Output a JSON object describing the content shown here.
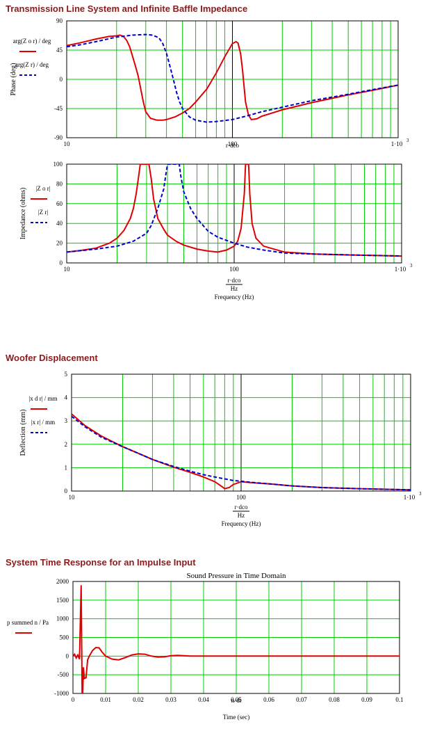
{
  "sections": {
    "impedance": "Transmission Line System and Infinite Baffle Impedance",
    "displacement": "Woofer Displacement",
    "time_response": "System Time Response for an Impulse Input"
  },
  "colors": {
    "series1": "#e00000",
    "series2": "#0000cc",
    "grid": "#00cc00",
    "title": "#8b1a1a"
  },
  "chart_data": [
    {
      "type": "line",
      "xscale": "log",
      "xlim": [
        10,
        1000
      ],
      "ylim": [
        -90,
        90
      ],
      "yticks": [
        "90",
        "45",
        "0",
        "-45",
        "-90"
      ],
      "xticks": [
        "10",
        "100",
        "1·10"
      ],
      "x_exp": "3",
      "ylabel": "Phase (deg)",
      "xlabel_expr": "r·dco",
      "legend": [
        "arg(Z o r) / deg",
        "arg(Z r) / deg"
      ],
      "series": [
        {
          "values": [
            [
              10,
              52
            ],
            [
              12,
              56
            ],
            [
              15,
              62
            ],
            [
              18,
              66
            ],
            [
              20,
              67
            ],
            [
              21,
              68
            ],
            [
              22,
              66
            ],
            [
              23,
              60
            ],
            [
              24,
              50
            ],
            [
              25,
              35
            ],
            [
              26,
              20
            ],
            [
              27,
              5
            ],
            [
              28,
              -15
            ],
            [
              29,
              -35
            ],
            [
              30,
              -50
            ],
            [
              32,
              -60
            ],
            [
              35,
              -63
            ],
            [
              38,
              -63
            ],
            [
              40,
              -62
            ],
            [
              45,
              -58
            ],
            [
              50,
              -52
            ],
            [
              55,
              -45
            ],
            [
              60,
              -35
            ],
            [
              70,
              -15
            ],
            [
              80,
              10
            ],
            [
              90,
              35
            ],
            [
              100,
              55
            ],
            [
              105,
              58
            ],
            [
              108,
              56
            ],
            [
              112,
              40
            ],
            [
              115,
              15
            ],
            [
              118,
              -15
            ],
            [
              120,
              -35
            ],
            [
              125,
              -55
            ],
            [
              130,
              -62
            ],
            [
              140,
              -61
            ],
            [
              150,
              -57
            ],
            [
              200,
              -47
            ],
            [
              300,
              -36
            ],
            [
              500,
              -24
            ],
            [
              700,
              -17
            ],
            [
              1000,
              -9
            ]
          ]
        },
        {
          "values": [
            [
              10,
              50
            ],
            [
              12,
              53
            ],
            [
              15,
              58
            ],
            [
              20,
              65
            ],
            [
              25,
              68
            ],
            [
              30,
              69
            ],
            [
              33,
              68
            ],
            [
              36,
              64
            ],
            [
              38,
              55
            ],
            [
              40,
              40
            ],
            [
              42,
              20
            ],
            [
              44,
              0
            ],
            [
              46,
              -20
            ],
            [
              48,
              -35
            ],
            [
              50,
              -45
            ],
            [
              55,
              -58
            ],
            [
              60,
              -63
            ],
            [
              70,
              -66
            ],
            [
              80,
              -65
            ],
            [
              100,
              -62
            ],
            [
              120,
              -57
            ],
            [
              150,
              -50
            ],
            [
              200,
              -43
            ],
            [
              300,
              -33
            ],
            [
              500,
              -23
            ],
            [
              700,
              -16
            ],
            [
              1000,
              -9
            ]
          ]
        }
      ]
    },
    {
      "type": "line",
      "xscale": "log",
      "xlim": [
        10,
        1000
      ],
      "ylim": [
        0,
        100
      ],
      "yticks": [
        "100",
        "80",
        "60",
        "40",
        "20",
        "0"
      ],
      "xticks": [
        "10",
        "100",
        "1·10"
      ],
      "x_exp": "3",
      "ylabel": "Impedance (ohms)",
      "xlabel_expr": "r·dco / Hz",
      "xlabel": "Frequency (Hz)",
      "legend": [
        "|Z o r|",
        "|Z r|"
      ],
      "series": [
        {
          "values": [
            [
              10,
              11
            ],
            [
              12,
              12.5
            ],
            [
              15,
              15
            ],
            [
              18,
              20
            ],
            [
              20,
              25
            ],
            [
              22,
              33
            ],
            [
              24,
              45
            ],
            [
              25,
              55
            ],
            [
              26,
              70
            ],
            [
              27,
              90
            ],
            [
              27.5,
              100
            ],
            [
              31,
              100
            ],
            [
              32,
              85
            ],
            [
              33,
              65
            ],
            [
              35,
              45
            ],
            [
              38,
              34
            ],
            [
              40,
              28
            ],
            [
              45,
              22
            ],
            [
              50,
              18
            ],
            [
              60,
              14
            ],
            [
              70,
              12
            ],
            [
              80,
              11
            ],
            [
              90,
              13
            ],
            [
              100,
              17
            ],
            [
              105,
              22
            ],
            [
              110,
              35
            ],
            [
              115,
              70
            ],
            [
              117,
              100
            ],
            [
              122,
              100
            ],
            [
              124,
              70
            ],
            [
              128,
              40
            ],
            [
              135,
              25
            ],
            [
              150,
              17
            ],
            [
              200,
              11
            ],
            [
              300,
              9
            ],
            [
              500,
              8
            ],
            [
              1000,
              7
            ]
          ]
        },
        {
          "values": [
            [
              10,
              11
            ],
            [
              15,
              14
            ],
            [
              20,
              17
            ],
            [
              25,
              22
            ],
            [
              30,
              30
            ],
            [
              32,
              38
            ],
            [
              35,
              55
            ],
            [
              38,
              75
            ],
            [
              39,
              88
            ],
            [
              40,
              100
            ],
            [
              47,
              100
            ],
            [
              48,
              88
            ],
            [
              50,
              72
            ],
            [
              55,
              55
            ],
            [
              60,
              45
            ],
            [
              70,
              32
            ],
            [
              80,
              26
            ],
            [
              100,
              20
            ],
            [
              120,
              16
            ],
            [
              150,
              13
            ],
            [
              200,
              10
            ],
            [
              300,
              9
            ],
            [
              500,
              8
            ],
            [
              1000,
              7
            ]
          ]
        }
      ]
    },
    {
      "type": "line",
      "xscale": "log",
      "xlim": [
        10,
        1000
      ],
      "ylim": [
        0,
        5
      ],
      "yticks": [
        "5",
        "4",
        "3",
        "2",
        "1",
        "0"
      ],
      "xticks": [
        "10",
        "100",
        "1·10"
      ],
      "x_exp": "3",
      "ylabel": "Deflection (mm)",
      "xlabel_expr": "r·dco / Hz",
      "xlabel": "Frequency (Hz)",
      "legend": [
        "|x d r| / mm",
        "|x r| / mm"
      ],
      "series": [
        {
          "values": [
            [
              10,
              3.3
            ],
            [
              12,
              2.8
            ],
            [
              15,
              2.35
            ],
            [
              20,
              1.9
            ],
            [
              25,
              1.6
            ],
            [
              30,
              1.35
            ],
            [
              40,
              1.02
            ],
            [
              50,
              0.8
            ],
            [
              60,
              0.6
            ],
            [
              70,
              0.4
            ],
            [
              75,
              0.25
            ],
            [
              80,
              0.1
            ],
            [
              85,
              0.15
            ],
            [
              90,
              0.28
            ],
            [
              100,
              0.4
            ],
            [
              120,
              0.35
            ],
            [
              150,
              0.3
            ],
            [
              200,
              0.22
            ],
            [
              300,
              0.15
            ],
            [
              500,
              0.1
            ],
            [
              1000,
              0.05
            ]
          ]
        },
        {
          "values": [
            [
              10,
              3.2
            ],
            [
              12,
              2.75
            ],
            [
              15,
              2.3
            ],
            [
              20,
              1.9
            ],
            [
              25,
              1.6
            ],
            [
              30,
              1.35
            ],
            [
              40,
              1.05
            ],
            [
              50,
              0.85
            ],
            [
              60,
              0.7
            ],
            [
              70,
              0.6
            ],
            [
              80,
              0.52
            ],
            [
              90,
              0.45
            ],
            [
              100,
              0.42
            ],
            [
              120,
              0.36
            ],
            [
              150,
              0.3
            ],
            [
              200,
              0.22
            ],
            [
              300,
              0.15
            ],
            [
              500,
              0.1
            ],
            [
              1000,
              0.05
            ]
          ]
        }
      ]
    },
    {
      "type": "line",
      "title": "Sound Pressure in Time Domain",
      "xlim": [
        0,
        0.1
      ],
      "ylim": [
        -1000,
        2000
      ],
      "yticks": [
        "2000",
        "1500",
        "1000",
        "500",
        "0",
        "-500",
        "-1000"
      ],
      "xticks": [
        "0",
        "0.01",
        "0.02",
        "0.03",
        "0.04",
        "0.05",
        "0.06",
        "0.07",
        "0.08",
        "0.09",
        "0.1"
      ],
      "xlabel_expr": "n·dt",
      "xlabel": "Time (sec)",
      "legend": [
        "p summed n / Pa"
      ],
      "series": [
        {
          "values": [
            [
              0,
              0
            ],
            [
              0.0005,
              50
            ],
            [
              0.001,
              -50
            ],
            [
              0.0015,
              30
            ],
            [
              0.002,
              -80
            ],
            [
              0.0025,
              1900
            ],
            [
              0.0028,
              -1000
            ],
            [
              0.003,
              -1000
            ],
            [
              0.0032,
              -300
            ],
            [
              0.0035,
              -600
            ],
            [
              0.004,
              -580
            ],
            [
              0.0045,
              -100
            ],
            [
              0.005,
              0
            ],
            [
              0.006,
              150
            ],
            [
              0.007,
              230
            ],
            [
              0.008,
              220
            ],
            [
              0.009,
              100
            ],
            [
              0.01,
              0
            ],
            [
              0.012,
              -80
            ],
            [
              0.014,
              -100
            ],
            [
              0.016,
              -40
            ],
            [
              0.018,
              30
            ],
            [
              0.02,
              60
            ],
            [
              0.022,
              50
            ],
            [
              0.024,
              0
            ],
            [
              0.026,
              -25
            ],
            [
              0.028,
              -20
            ],
            [
              0.03,
              10
            ],
            [
              0.032,
              20
            ],
            [
              0.034,
              10
            ],
            [
              0.036,
              0
            ],
            [
              0.04,
              0
            ],
            [
              0.1,
              0
            ]
          ]
        }
      ]
    }
  ]
}
